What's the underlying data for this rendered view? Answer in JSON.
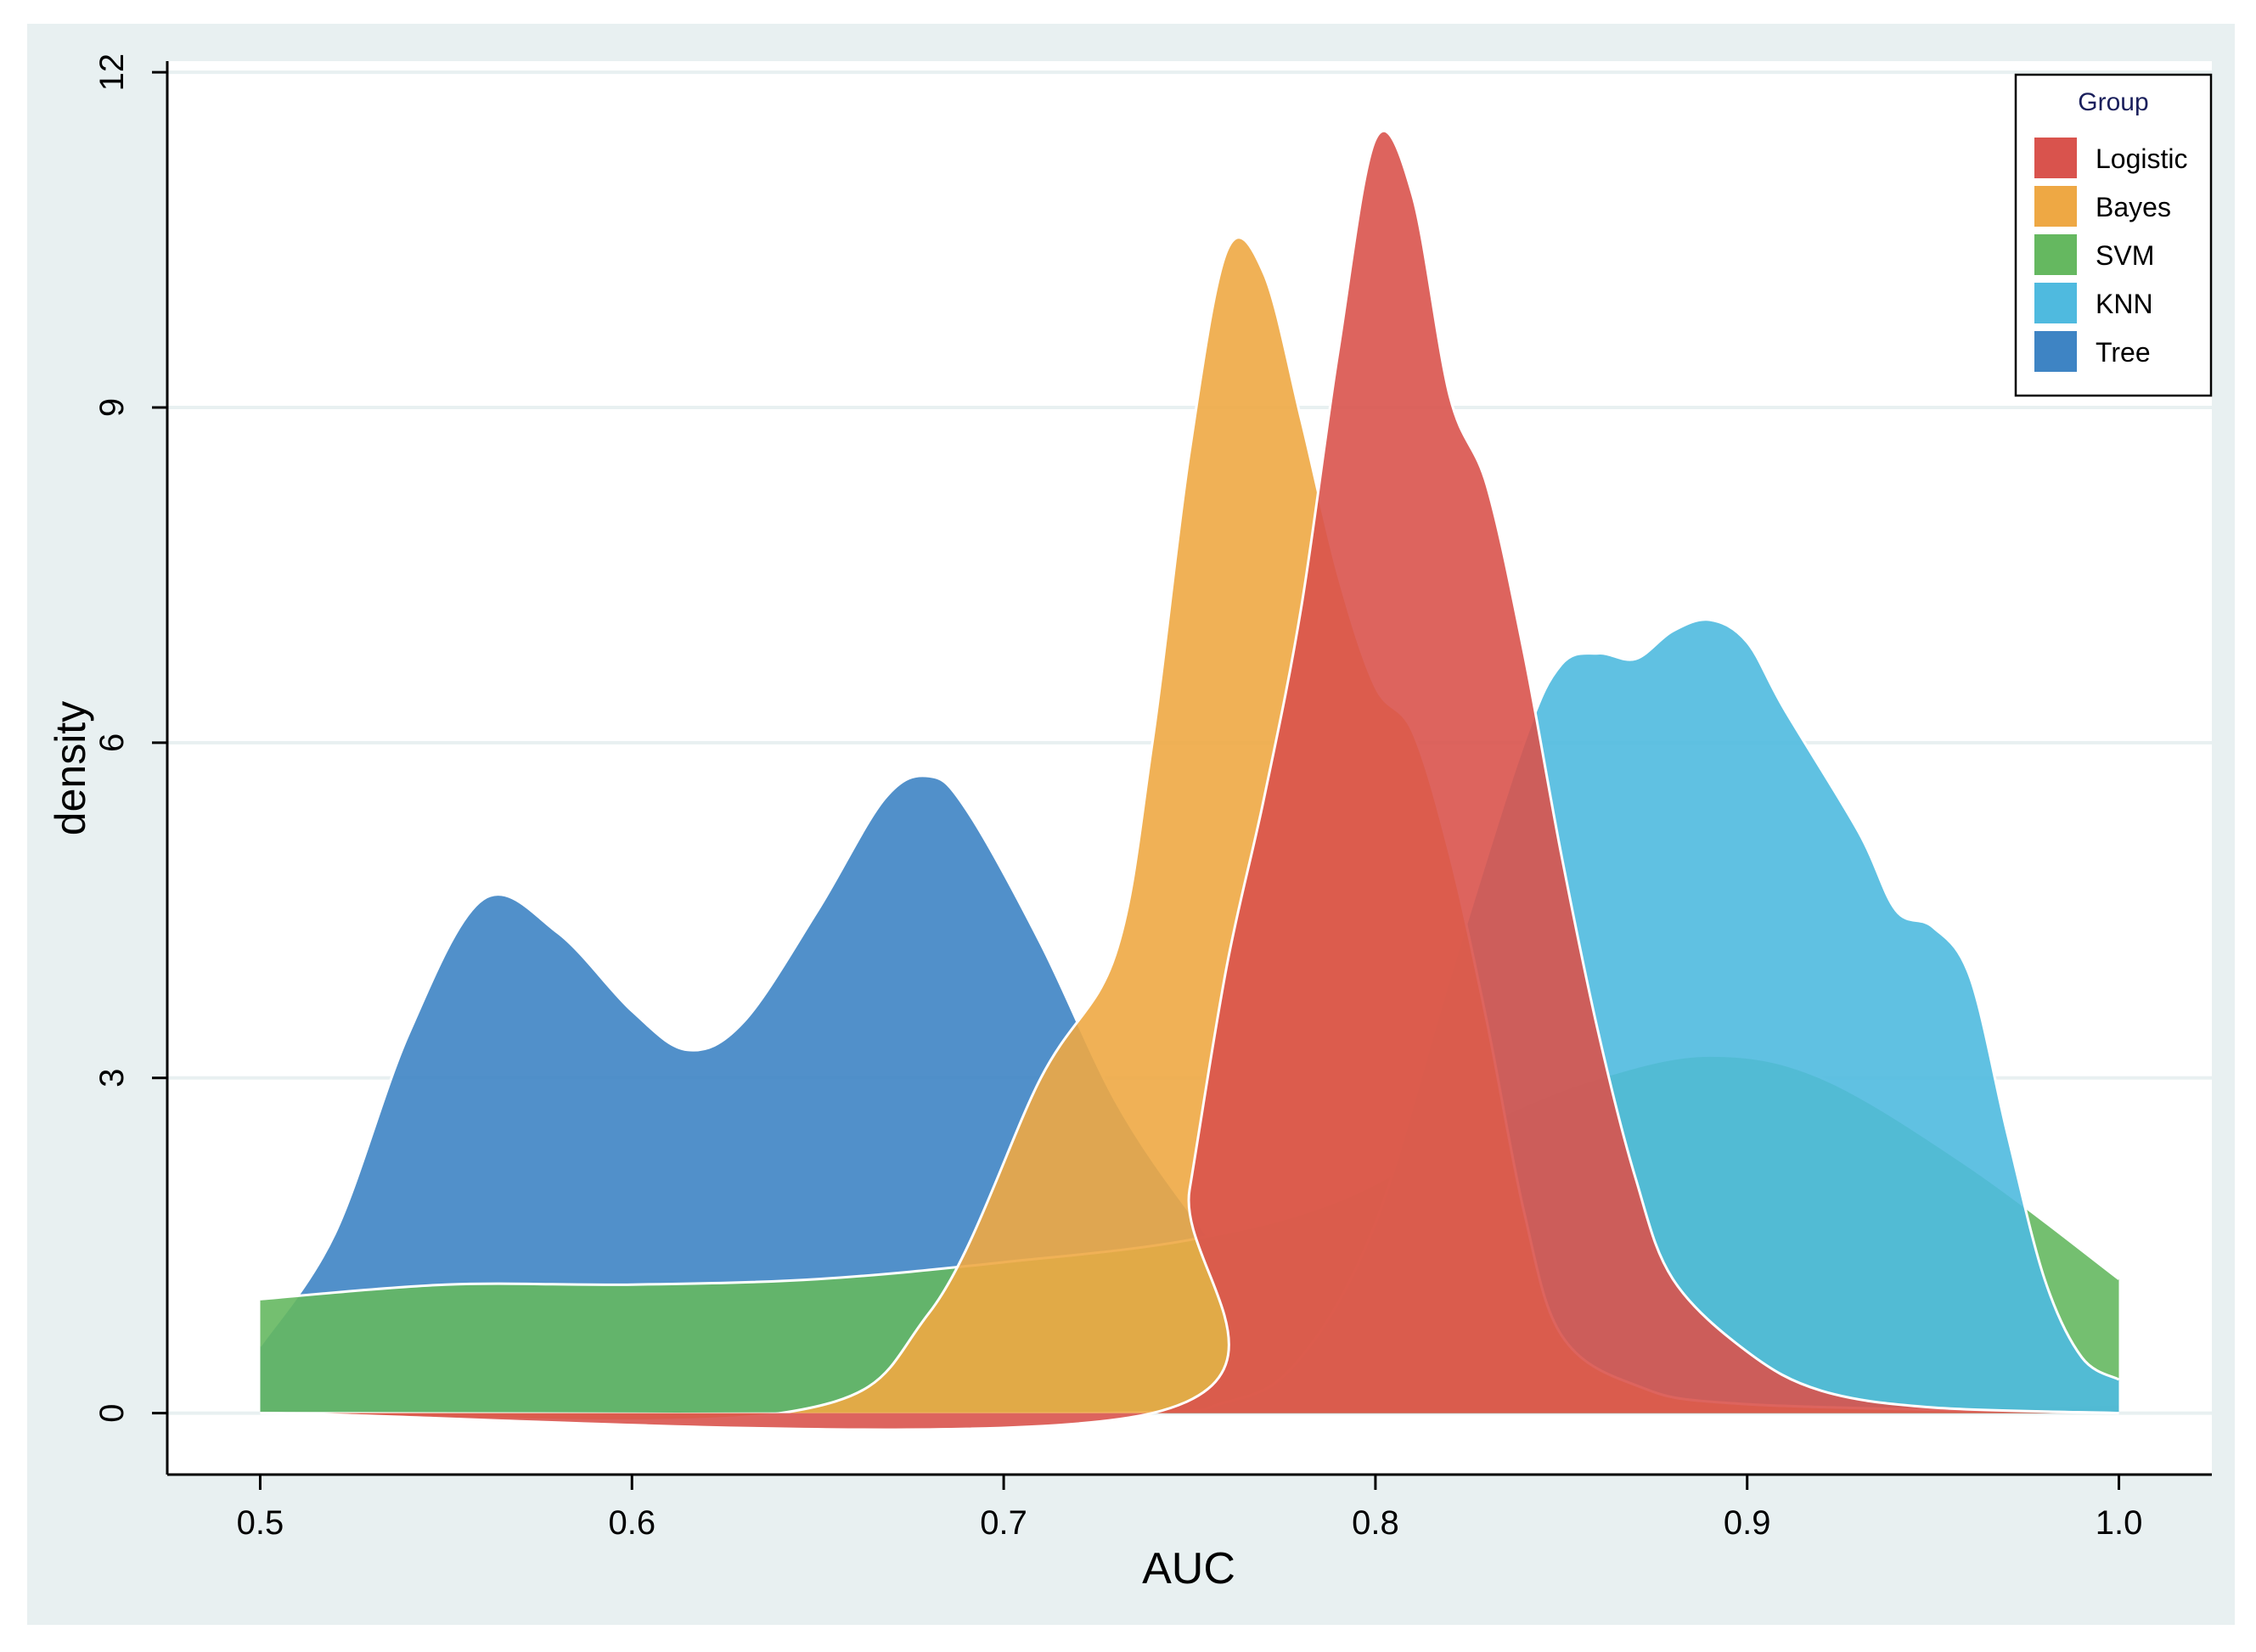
{
  "chart_data": {
    "type": "area",
    "title": "",
    "xlabel": "AUC",
    "ylabel": "density",
    "xlim": [
      0.475,
      1.025
    ],
    "ylim": [
      -0.55,
      12.1
    ],
    "xticks": [
      0.5,
      0.6,
      0.7,
      0.8,
      0.9,
      1.0
    ],
    "xtick_labels": [
      "0.5",
      "0.6",
      "0.7",
      "0.8",
      "0.9",
      "1.0"
    ],
    "yticks": [
      0,
      3,
      6,
      9,
      12
    ],
    "ytick_labels": [
      "0",
      "3",
      "6",
      "9",
      "12"
    ],
    "grid": true,
    "legend": {
      "title": "Group",
      "position": "top-right"
    },
    "colors": {
      "plot_bg": "#ffffff",
      "outer_bg": "#e8f0f1",
      "grid": "#e8f0f1",
      "curve_outline": "#ffffff"
    },
    "series": [
      {
        "name": "Tree",
        "color": "#3e84c4",
        "points": [
          [
            0.5,
            0.6
          ],
          [
            0.52,
            1.6
          ],
          [
            0.54,
            3.4
          ],
          [
            0.56,
            4.6
          ],
          [
            0.58,
            4.3
          ],
          [
            0.6,
            3.6
          ],
          [
            0.615,
            3.25
          ],
          [
            0.63,
            3.5
          ],
          [
            0.65,
            4.5
          ],
          [
            0.668,
            5.5
          ],
          [
            0.68,
            5.7
          ],
          [
            0.69,
            5.4
          ],
          [
            0.71,
            4.2
          ],
          [
            0.73,
            2.8
          ],
          [
            0.75,
            1.8
          ],
          [
            0.77,
            1.0
          ],
          [
            0.79,
            0.58
          ],
          [
            0.81,
            0.5
          ],
          [
            0.84,
            0.45
          ],
          [
            0.86,
            0.3
          ],
          [
            0.88,
            0.12
          ],
          [
            0.9,
            0.05
          ],
          [
            0.95,
            0.05
          ],
          [
            1.0,
            0.08
          ]
        ]
      },
      {
        "name": "SVM",
        "color": "#65b860",
        "points": [
          [
            0.5,
            1.02
          ],
          [
            0.55,
            1.15
          ],
          [
            0.6,
            1.15
          ],
          [
            0.65,
            1.2
          ],
          [
            0.7,
            1.35
          ],
          [
            0.75,
            1.55
          ],
          [
            0.79,
            1.9
          ],
          [
            0.83,
            2.6
          ],
          [
            0.86,
            3.0
          ],
          [
            0.89,
            3.2
          ],
          [
            0.92,
            3.0
          ],
          [
            0.96,
            2.2
          ],
          [
            1.0,
            1.2
          ]
        ]
      },
      {
        "name": "KNN",
        "color": "#4fbadf",
        "points": [
          [
            0.5,
            0.0
          ],
          [
            0.72,
            0.0
          ],
          [
            0.76,
            0.1
          ],
          [
            0.78,
            0.5
          ],
          [
            0.8,
            1.7
          ],
          [
            0.82,
            3.9
          ],
          [
            0.84,
            6.0
          ],
          [
            0.85,
            6.7
          ],
          [
            0.86,
            6.8
          ],
          [
            0.87,
            6.75
          ],
          [
            0.88,
            7.0
          ],
          [
            0.89,
            7.1
          ],
          [
            0.9,
            6.9
          ],
          [
            0.91,
            6.3
          ],
          [
            0.93,
            5.2
          ],
          [
            0.94,
            4.5
          ],
          [
            0.95,
            4.35
          ],
          [
            0.96,
            3.9
          ],
          [
            0.97,
            2.5
          ],
          [
            0.98,
            1.2
          ],
          [
            0.99,
            0.5
          ],
          [
            1.0,
            0.3
          ]
        ]
      },
      {
        "name": "Bayes",
        "color": "#eea844",
        "points": [
          [
            0.5,
            0.0
          ],
          [
            0.64,
            0.0
          ],
          [
            0.68,
            0.9
          ],
          [
            0.71,
            3.0
          ],
          [
            0.73,
            4.1
          ],
          [
            0.74,
            6.0
          ],
          [
            0.75,
            8.6
          ],
          [
            0.76,
            10.4
          ],
          [
            0.77,
            10.2
          ],
          [
            0.78,
            8.9
          ],
          [
            0.79,
            7.5
          ],
          [
            0.8,
            6.5
          ],
          [
            0.81,
            6.1
          ],
          [
            0.82,
            5.0
          ],
          [
            0.83,
            3.5
          ],
          [
            0.84,
            1.8
          ],
          [
            0.85,
            0.7
          ],
          [
            0.87,
            0.25
          ],
          [
            0.9,
            0.08
          ],
          [
            1.0,
            0.0
          ]
        ]
      },
      {
        "name": "Logistic",
        "color": "#d9534d",
        "points": [
          [
            0.5,
            0.0
          ],
          [
            0.74,
            0.0
          ],
          [
            0.75,
            2.0
          ],
          [
            0.76,
            4.0
          ],
          [
            0.77,
            5.5
          ],
          [
            0.78,
            7.2
          ],
          [
            0.79,
            9.5
          ],
          [
            0.8,
            11.4
          ],
          [
            0.81,
            10.9
          ],
          [
            0.82,
            9.1
          ],
          [
            0.83,
            8.3
          ],
          [
            0.84,
            6.8
          ],
          [
            0.85,
            5.0
          ],
          [
            0.86,
            3.4
          ],
          [
            0.87,
            2.1
          ],
          [
            0.88,
            1.2
          ],
          [
            0.9,
            0.55
          ],
          [
            0.92,
            0.2
          ],
          [
            0.95,
            0.05
          ],
          [
            1.0,
            0.0
          ]
        ]
      }
    ]
  }
}
